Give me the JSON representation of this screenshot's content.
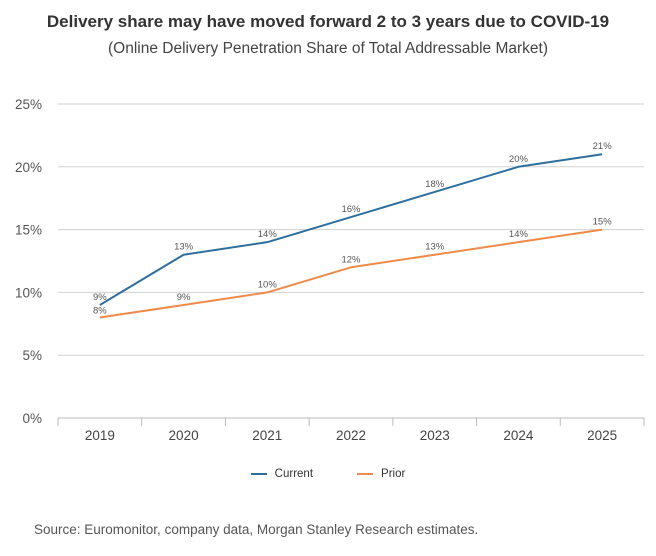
{
  "chart_data": {
    "type": "line",
    "title": "Delivery share may have moved forward 2 to 3 years due to COVID-19",
    "subtitle": "(Online Delivery Penetration Share of Total Addressable Market)",
    "categories": [
      "2019",
      "2020",
      "2021",
      "2022",
      "2023",
      "2024",
      "2025"
    ],
    "series": [
      {
        "name": "Current",
        "color": "#2e6f9e",
        "values": [
          9,
          13,
          14,
          16,
          18,
          20,
          21
        ],
        "labels": [
          "9%",
          "13%",
          "14%",
          "16%",
          "18%",
          "20%",
          "21%"
        ]
      },
      {
        "name": "Prior",
        "color": "#ee8a4a",
        "values": [
          8,
          9,
          10,
          12,
          13,
          14,
          15
        ],
        "labels": [
          "8%",
          "9%",
          "10%",
          "12%",
          "13%",
          "14%",
          "15%"
        ]
      }
    ],
    "ylim": [
      0,
      25
    ],
    "yticks": [
      0,
      5,
      10,
      15,
      20,
      25
    ],
    "ytick_labels": [
      "0%",
      "5%",
      "10%",
      "15%",
      "20%",
      "25%"
    ],
    "grid": true,
    "legend_position": "bottom"
  },
  "source": "Source: Euromonitor, company data, Morgan Stanley Research estimates."
}
